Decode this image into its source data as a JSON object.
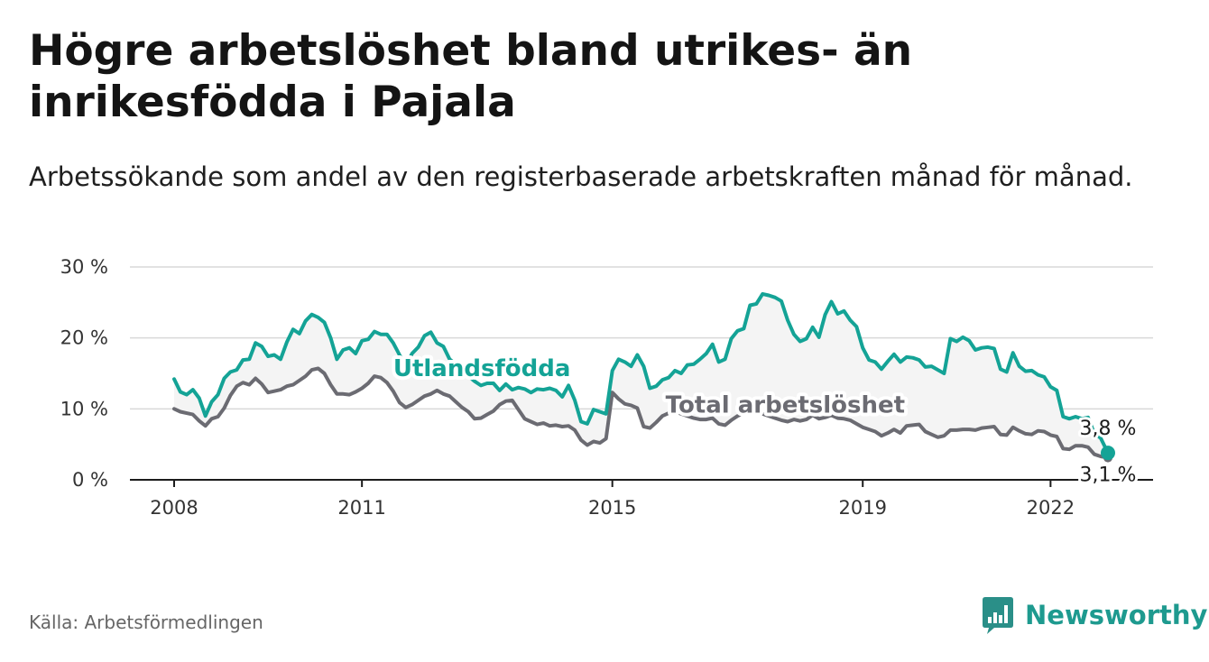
{
  "header": {
    "title": "Högre arbetslöshet bland utrikes- än inrikesfödda i Pajala",
    "subtitle": "Arbetssökande som andel av den registerbaserade arbetskraften månad för månad."
  },
  "footer": {
    "source": "Källa: Arbetsförmedlingen",
    "brand": "Newsworthy"
  },
  "colors": {
    "utlandsfodda": "#14a396",
    "total": "#6b6b72",
    "band": "#f4f4f4",
    "grid": "#d9d9d9",
    "brand": "#1e9a8f"
  },
  "icons": {
    "logo": "newsworthy-chart-logo-icon"
  },
  "chart_data": {
    "type": "line",
    "title": "Högre arbetslöshet bland utrikes- än inrikesfödda i Pajala",
    "xlabel": "",
    "ylabel": "",
    "x_range": [
      2008.0,
      2022.917
    ],
    "ylim": [
      0,
      30
    ],
    "yticks": [
      0,
      10,
      20,
      30
    ],
    "ytick_labels": [
      "0 %",
      "10 %",
      "20 %",
      "30 %"
    ],
    "xticks": [
      2008,
      2011,
      2015,
      2019,
      2022
    ],
    "xtick_labels": [
      "2008",
      "2011",
      "2015",
      "2019",
      "2022"
    ],
    "grid": true,
    "series": [
      {
        "name": "Utlandsfödda",
        "label": "Utlandsfödda",
        "end_label": "3,8 %",
        "points": [
          [
            2008.0,
            14.2
          ],
          [
            2008.1,
            12.4
          ],
          [
            2008.2,
            12.0
          ],
          [
            2008.3,
            12.7
          ],
          [
            2008.4,
            11.5
          ],
          [
            2008.5,
            9.0
          ],
          [
            2008.6,
            11.0
          ],
          [
            2008.7,
            12.0
          ],
          [
            2008.8,
            14.3
          ],
          [
            2008.9,
            15.2
          ],
          [
            2009.0,
            15.5
          ],
          [
            2009.1,
            16.9
          ],
          [
            2009.2,
            17.0
          ],
          [
            2009.3,
            19.3
          ],
          [
            2009.4,
            18.8
          ],
          [
            2009.5,
            17.4
          ],
          [
            2009.6,
            17.6
          ],
          [
            2009.7,
            17.0
          ],
          [
            2009.8,
            19.4
          ],
          [
            2009.9,
            21.2
          ],
          [
            2010.0,
            20.6
          ],
          [
            2010.1,
            22.4
          ],
          [
            2010.2,
            23.3
          ],
          [
            2010.3,
            22.9
          ],
          [
            2010.4,
            22.2
          ],
          [
            2010.5,
            20.0
          ],
          [
            2010.6,
            17.0
          ],
          [
            2010.7,
            18.3
          ],
          [
            2010.8,
            18.6
          ],
          [
            2010.9,
            17.8
          ],
          [
            2011.0,
            19.6
          ],
          [
            2011.1,
            19.8
          ],
          [
            2011.2,
            20.9
          ],
          [
            2011.3,
            20.5
          ],
          [
            2011.4,
            20.5
          ],
          [
            2011.5,
            19.3
          ],
          [
            2011.6,
            17.6
          ],
          [
            2011.7,
            16.0
          ],
          [
            2011.8,
            17.8
          ],
          [
            2011.9,
            18.7
          ],
          [
            2012.0,
            20.3
          ],
          [
            2012.1,
            20.8
          ],
          [
            2012.2,
            19.3
          ],
          [
            2012.3,
            18.8
          ],
          [
            2012.4,
            17.0
          ],
          [
            2012.5,
            16.3
          ],
          [
            2012.6,
            15.4
          ],
          [
            2012.7,
            14.6
          ],
          [
            2012.8,
            13.9
          ],
          [
            2012.9,
            13.3
          ],
          [
            2013.0,
            13.6
          ],
          [
            2013.1,
            13.6
          ],
          [
            2013.2,
            12.6
          ],
          [
            2013.3,
            13.5
          ],
          [
            2013.4,
            12.7
          ],
          [
            2013.5,
            13.0
          ],
          [
            2013.6,
            12.8
          ],
          [
            2013.7,
            12.3
          ],
          [
            2013.8,
            12.8
          ],
          [
            2013.9,
            12.7
          ],
          [
            2014.0,
            12.9
          ],
          [
            2014.1,
            12.6
          ],
          [
            2014.2,
            11.7
          ],
          [
            2014.3,
            13.3
          ],
          [
            2014.4,
            11.2
          ],
          [
            2014.5,
            8.2
          ],
          [
            2014.6,
            7.9
          ],
          [
            2014.7,
            9.9
          ],
          [
            2014.8,
            9.6
          ],
          [
            2014.9,
            9.3
          ],
          [
            2015.0,
            15.4
          ],
          [
            2015.1,
            17.0
          ],
          [
            2015.2,
            16.6
          ],
          [
            2015.3,
            16.0
          ],
          [
            2015.4,
            17.6
          ],
          [
            2015.5,
            16.0
          ],
          [
            2015.6,
            12.9
          ],
          [
            2015.7,
            13.2
          ],
          [
            2015.8,
            14.1
          ],
          [
            2015.9,
            14.4
          ],
          [
            2016.0,
            15.4
          ],
          [
            2016.1,
            15.0
          ],
          [
            2016.2,
            16.2
          ],
          [
            2016.3,
            16.3
          ],
          [
            2016.4,
            17.0
          ],
          [
            2016.5,
            17.8
          ],
          [
            2016.6,
            19.1
          ],
          [
            2016.7,
            16.6
          ],
          [
            2016.8,
            17.0
          ],
          [
            2016.9,
            19.9
          ],
          [
            2017.0,
            21.0
          ],
          [
            2017.1,
            21.3
          ],
          [
            2017.2,
            24.6
          ],
          [
            2017.3,
            24.8
          ],
          [
            2017.4,
            26.2
          ],
          [
            2017.5,
            26.0
          ],
          [
            2017.6,
            25.7
          ],
          [
            2017.7,
            25.2
          ],
          [
            2017.8,
            22.5
          ],
          [
            2017.9,
            20.5
          ],
          [
            2018.0,
            19.5
          ],
          [
            2018.1,
            19.9
          ],
          [
            2018.2,
            21.5
          ],
          [
            2018.3,
            20.1
          ],
          [
            2018.4,
            23.3
          ],
          [
            2018.5,
            25.1
          ],
          [
            2018.6,
            23.4
          ],
          [
            2018.7,
            23.8
          ],
          [
            2018.8,
            22.5
          ],
          [
            2018.9,
            21.6
          ],
          [
            2019.0,
            18.6
          ],
          [
            2019.1,
            16.9
          ],
          [
            2019.2,
            16.6
          ],
          [
            2019.3,
            15.6
          ],
          [
            2019.4,
            16.7
          ],
          [
            2019.5,
            17.7
          ],
          [
            2019.6,
            16.6
          ],
          [
            2019.7,
            17.3
          ],
          [
            2019.8,
            17.2
          ],
          [
            2019.9,
            16.9
          ],
          [
            2020.0,
            15.9
          ],
          [
            2020.1,
            16.0
          ],
          [
            2020.2,
            15.5
          ],
          [
            2020.3,
            15.0
          ],
          [
            2020.4,
            19.9
          ],
          [
            2020.5,
            19.5
          ],
          [
            2020.6,
            20.1
          ],
          [
            2020.7,
            19.6
          ],
          [
            2020.8,
            18.3
          ],
          [
            2020.9,
            18.6
          ],
          [
            2021.0,
            18.7
          ],
          [
            2021.1,
            18.5
          ],
          [
            2021.2,
            15.6
          ],
          [
            2021.3,
            15.2
          ],
          [
            2021.4,
            17.9
          ],
          [
            2021.5,
            16.0
          ],
          [
            2021.6,
            15.3
          ],
          [
            2021.7,
            15.4
          ],
          [
            2021.8,
            14.8
          ],
          [
            2021.9,
            14.5
          ],
          [
            2022.0,
            13.1
          ],
          [
            2022.1,
            12.6
          ],
          [
            2022.2,
            8.9
          ],
          [
            2022.3,
            8.6
          ],
          [
            2022.4,
            8.9
          ],
          [
            2022.5,
            8.6
          ],
          [
            2022.6,
            8.8
          ],
          [
            2022.7,
            6.5
          ],
          [
            2022.8,
            5.9
          ],
          [
            2022.917,
            3.8
          ]
        ]
      },
      {
        "name": "Total arbetslöshet",
        "label": "Total arbetslöshet",
        "end_label": "3,1 %",
        "points": [
          [
            2008.0,
            10.0
          ],
          [
            2008.1,
            9.6
          ],
          [
            2008.2,
            9.4
          ],
          [
            2008.3,
            9.2
          ],
          [
            2008.4,
            8.3
          ],
          [
            2008.5,
            7.6
          ],
          [
            2008.6,
            8.6
          ],
          [
            2008.7,
            8.9
          ],
          [
            2008.8,
            10.1
          ],
          [
            2008.9,
            11.9
          ],
          [
            2009.0,
            13.2
          ],
          [
            2009.1,
            13.7
          ],
          [
            2009.2,
            13.4
          ],
          [
            2009.3,
            14.3
          ],
          [
            2009.4,
            13.5
          ],
          [
            2009.5,
            12.3
          ],
          [
            2009.6,
            12.5
          ],
          [
            2009.7,
            12.7
          ],
          [
            2009.8,
            13.2
          ],
          [
            2009.9,
            13.4
          ],
          [
            2010.0,
            14.0
          ],
          [
            2010.1,
            14.6
          ],
          [
            2010.2,
            15.5
          ],
          [
            2010.3,
            15.7
          ],
          [
            2010.4,
            15.0
          ],
          [
            2010.5,
            13.4
          ],
          [
            2010.6,
            12.1
          ],
          [
            2010.7,
            12.1
          ],
          [
            2010.8,
            12.0
          ],
          [
            2010.9,
            12.4
          ],
          [
            2011.0,
            12.9
          ],
          [
            2011.1,
            13.6
          ],
          [
            2011.2,
            14.6
          ],
          [
            2011.3,
            14.4
          ],
          [
            2011.4,
            13.7
          ],
          [
            2011.5,
            12.5
          ],
          [
            2011.6,
            10.9
          ],
          [
            2011.7,
            10.2
          ],
          [
            2011.8,
            10.6
          ],
          [
            2011.9,
            11.2
          ],
          [
            2012.0,
            11.8
          ],
          [
            2012.1,
            12.1
          ],
          [
            2012.2,
            12.6
          ],
          [
            2012.3,
            12.1
          ],
          [
            2012.4,
            11.8
          ],
          [
            2012.5,
            11.0
          ],
          [
            2012.6,
            10.2
          ],
          [
            2012.7,
            9.6
          ],
          [
            2012.8,
            8.6
          ],
          [
            2012.9,
            8.7
          ],
          [
            2013.0,
            9.2
          ],
          [
            2013.1,
            9.7
          ],
          [
            2013.2,
            10.6
          ],
          [
            2013.3,
            11.1
          ],
          [
            2013.4,
            11.2
          ],
          [
            2013.5,
            9.9
          ],
          [
            2013.6,
            8.6
          ],
          [
            2013.7,
            8.2
          ],
          [
            2013.8,
            7.8
          ],
          [
            2013.9,
            8.0
          ],
          [
            2014.0,
            7.6
          ],
          [
            2014.1,
            7.7
          ],
          [
            2014.2,
            7.5
          ],
          [
            2014.3,
            7.6
          ],
          [
            2014.4,
            7.0
          ],
          [
            2014.5,
            5.6
          ],
          [
            2014.6,
            4.9
          ],
          [
            2014.7,
            5.4
          ],
          [
            2014.8,
            5.2
          ],
          [
            2014.9,
            5.8
          ],
          [
            2015.0,
            12.3
          ],
          [
            2015.1,
            11.4
          ],
          [
            2015.2,
            10.7
          ],
          [
            2015.3,
            10.5
          ],
          [
            2015.4,
            10.1
          ],
          [
            2015.5,
            7.5
          ],
          [
            2015.6,
            7.3
          ],
          [
            2015.7,
            8.1
          ],
          [
            2015.8,
            9.0
          ],
          [
            2015.9,
            9.4
          ],
          [
            2016.0,
            9.6
          ],
          [
            2016.1,
            9.3
          ],
          [
            2016.2,
            9.0
          ],
          [
            2016.3,
            8.7
          ],
          [
            2016.4,
            8.5
          ],
          [
            2016.5,
            8.5
          ],
          [
            2016.6,
            8.7
          ],
          [
            2016.7,
            7.9
          ],
          [
            2016.8,
            7.7
          ],
          [
            2016.9,
            8.4
          ],
          [
            2017.0,
            9.0
          ],
          [
            2017.1,
            9.4
          ],
          [
            2017.2,
            9.6
          ],
          [
            2017.3,
            9.5
          ],
          [
            2017.4,
            9.3
          ],
          [
            2017.5,
            9.0
          ],
          [
            2017.6,
            8.7
          ],
          [
            2017.7,
            8.4
          ],
          [
            2017.8,
            8.2
          ],
          [
            2017.9,
            8.5
          ],
          [
            2018.0,
            8.3
          ],
          [
            2018.1,
            8.5
          ],
          [
            2018.2,
            9.1
          ],
          [
            2018.3,
            8.6
          ],
          [
            2018.4,
            8.8
          ],
          [
            2018.5,
            9.1
          ],
          [
            2018.6,
            8.7
          ],
          [
            2018.7,
            8.6
          ],
          [
            2018.8,
            8.4
          ],
          [
            2018.9,
            7.9
          ],
          [
            2019.0,
            7.4
          ],
          [
            2019.1,
            7.1
          ],
          [
            2019.2,
            6.8
          ],
          [
            2019.3,
            6.2
          ],
          [
            2019.4,
            6.6
          ],
          [
            2019.5,
            7.1
          ],
          [
            2019.6,
            6.6
          ],
          [
            2019.7,
            7.6
          ],
          [
            2019.8,
            7.7
          ],
          [
            2019.9,
            7.8
          ],
          [
            2020.0,
            6.8
          ],
          [
            2020.1,
            6.4
          ],
          [
            2020.2,
            6.0
          ],
          [
            2020.3,
            6.2
          ],
          [
            2020.4,
            7.0
          ],
          [
            2020.5,
            7.0
          ],
          [
            2020.6,
            7.1
          ],
          [
            2020.7,
            7.1
          ],
          [
            2020.8,
            7.0
          ],
          [
            2020.9,
            7.3
          ],
          [
            2021.0,
            7.4
          ],
          [
            2021.1,
            7.5
          ],
          [
            2021.2,
            6.4
          ],
          [
            2021.3,
            6.3
          ],
          [
            2021.4,
            7.4
          ],
          [
            2021.5,
            6.9
          ],
          [
            2021.6,
            6.5
          ],
          [
            2021.7,
            6.4
          ],
          [
            2021.8,
            6.9
          ],
          [
            2021.9,
            6.8
          ],
          [
            2022.0,
            6.3
          ],
          [
            2022.1,
            6.1
          ],
          [
            2022.2,
            4.4
          ],
          [
            2022.3,
            4.3
          ],
          [
            2022.4,
            4.8
          ],
          [
            2022.5,
            4.8
          ],
          [
            2022.6,
            4.6
          ],
          [
            2022.7,
            3.6
          ],
          [
            2022.8,
            3.3
          ],
          [
            2022.917,
            3.1
          ]
        ]
      }
    ]
  }
}
